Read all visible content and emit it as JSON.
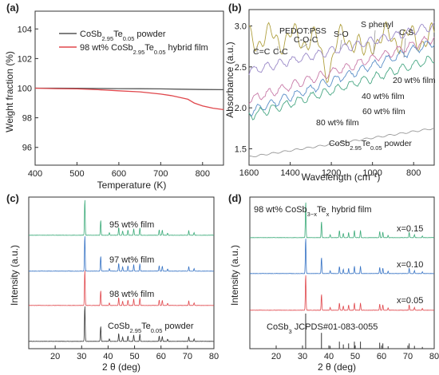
{
  "chart_data": [
    {
      "panel": "(a)",
      "type": "line",
      "xlabel": "Temperature (K)",
      "ylabel": "Weight fraction (%)",
      "xlim": [
        400,
        850
      ],
      "ylim": [
        94.8,
        105.2
      ],
      "xticks": [
        400,
        500,
        600,
        700,
        800
      ],
      "yticks": [
        96,
        98,
        100,
        102,
        104
      ],
      "legend_position": "upper-right",
      "series": [
        {
          "name_main": "CoSb",
          "name_sub1": "2.95",
          "name_mid": "Te",
          "name_sub2": "0.05",
          "name_end": " powder",
          "color": "#555555",
          "x": [
            400,
            450,
            500,
            550,
            600,
            650,
            700,
            750,
            800,
            850
          ],
          "y": [
            100.0,
            100.0,
            99.99,
            99.98,
            99.97,
            99.96,
            99.95,
            99.93,
            99.91,
            99.9
          ]
        },
        {
          "name_main": "98 wt% CoSb",
          "name_sub1": "2.95",
          "name_mid": "Te",
          "name_sub2": "0.05",
          "name_end": " hybrid film",
          "color": "#e0474c",
          "x": [
            400,
            450,
            500,
            550,
            600,
            650,
            700,
            725,
            750,
            765,
            780,
            800,
            825,
            850
          ],
          "y": [
            100.0,
            99.97,
            99.95,
            99.9,
            99.82,
            99.75,
            99.6,
            99.5,
            99.35,
            99.25,
            99.0,
            98.8,
            98.65,
            98.55
          ]
        }
      ]
    },
    {
      "panel": "(b)",
      "type": "line",
      "xlabel_main": "Wavelength (cm",
      "xlabel_sup": "−1",
      "xlabel_end": ")",
      "ylabel": "Absorbance (a.u.)",
      "xlim": [
        1600,
        700
      ],
      "ylim": [
        1.3,
        3.2
      ],
      "xticks": [
        1600,
        1400,
        1200,
        1000,
        800
      ],
      "yticks": [
        1.5,
        2.0,
        2.5,
        3.0
      ],
      "annotations": [
        "PEDOT:PSS",
        "C=C",
        "C-C",
        "C-O-C",
        "S-O",
        "S phenyl",
        "C-S"
      ],
      "series": [
        {
          "name": "PEDOT:PSS",
          "color": "#b0a040",
          "offset": 2.85
        },
        {
          "name": "20 wt% film",
          "color": "#9a89c8",
          "offset": 2.45
        },
        {
          "name": "40 wt% film",
          "color": "#c87aa8",
          "offset": 2.1
        },
        {
          "name": "60 wt% film",
          "color": "#5b8fc8",
          "offset": 1.95
        },
        {
          "name": "80 wt% film",
          "color": "#4aa885",
          "offset": 1.9
        },
        {
          "name": "CoSb2.95Te0.05 powder",
          "color": "#999999",
          "offset": 1.4
        }
      ],
      "series_labels": [
        {
          "text": "20 wt% film"
        },
        {
          "text": "40 wt% film"
        },
        {
          "text": "60 wt% film"
        },
        {
          "text": "80 wt% film"
        }
      ],
      "powder_label": {
        "main": "CoSb",
        "sub1": "2.95",
        "mid": "Te",
        "sub2": "0.05",
        "end": " powder"
      }
    },
    {
      "panel": "(c)",
      "type": "line",
      "xlabel": "2 θ (deg)",
      "ylabel": "Intensity (a.u.)",
      "xlim": [
        10,
        80
      ],
      "xticks": [
        20,
        30,
        40,
        50,
        60,
        70,
        80
      ],
      "peaks_2theta": [
        31.2,
        37.2,
        40.5,
        44.0,
        45.5,
        47.5,
        49.7,
        52.0,
        59.3,
        60.5,
        62.5,
        70.5,
        72.5
      ],
      "peak_heights": [
        1.0,
        0.42,
        0.07,
        0.22,
        0.12,
        0.15,
        0.18,
        0.2,
        0.15,
        0.14,
        0.06,
        0.13,
        0.07
      ],
      "series": [
        {
          "name": "95 wt% film",
          "color": "#3aaa78"
        },
        {
          "name": "97 wt% film",
          "color": "#3572c4"
        },
        {
          "name": "98 wt% film",
          "color": "#e0474c"
        },
        {
          "name": "CoSb2.95Te0.05 powder",
          "color": "#333333"
        }
      ],
      "labels": [
        "95 wt% film",
        "97 wt% film",
        "98 wt% film"
      ],
      "powder_label": {
        "main": "CoSb",
        "sub1": "2.95",
        "mid": "Te",
        "sub2": "0.05",
        "end": " powder"
      }
    },
    {
      "panel": "(d)",
      "type": "line",
      "xlabel": "2 θ (deg)",
      "ylabel": "Intensity (a.u.)",
      "xlim": [
        10,
        80
      ],
      "xticks": [
        20,
        30,
        40,
        50,
        60,
        70,
        80
      ],
      "title_label": {
        "main": "98 wt% CoSb",
        "sub1": "3−x",
        "mid": "Te",
        "sub2": "x",
        "end": " hybrid film"
      },
      "series": [
        {
          "name": "x=0.15",
          "color": "#3aaa78"
        },
        {
          "name": "x=0.10",
          "color": "#3572c4"
        },
        {
          "name": "x=0.05",
          "color": "#e0474c"
        }
      ],
      "reference": {
        "main": "CoSb",
        "sub": "3",
        "end": "   JCPDS#01-083-0055",
        "color": "#333333",
        "sticks_2theta": [
          31.2,
          37.2,
          40.5,
          44.0,
          45.5,
          47.5,
          49.7,
          52.0,
          59.3,
          60.5,
          62.5,
          70.5,
          72.5,
          75.5
        ],
        "stick_heights": [
          1.0,
          0.45,
          0.08,
          0.2,
          0.12,
          0.15,
          0.2,
          0.2,
          0.17,
          0.15,
          0.07,
          0.15,
          0.08,
          0.05
        ]
      }
    }
  ]
}
